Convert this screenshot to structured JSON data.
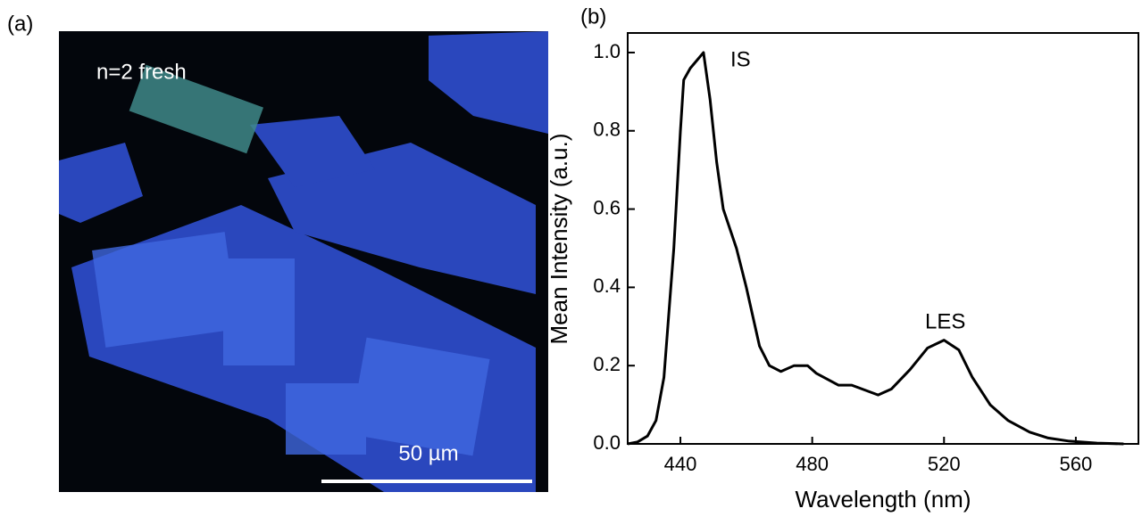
{
  "image_panel": {
    "panel_label": "(a)",
    "caption": "n=2 fresh",
    "scale_bar_label": "50 µm"
  },
  "chart_data": {
    "type": "line",
    "panel_label": "(b)",
    "x_label": "Wavelength (nm)",
    "y_label": "Mean Intensity (a.u.)",
    "annotations": [
      "IS",
      "LES"
    ],
    "x": [
      424,
      427,
      430,
      432.6,
      435,
      438,
      440,
      441,
      443,
      445,
      447,
      449,
      451,
      453,
      457,
      460,
      464,
      467,
      470.5,
      474.5,
      478.6,
      481.3,
      488,
      492,
      500,
      504,
      509.7,
      515,
      520,
      524.5,
      528.6,
      534,
      539.4,
      546,
      551.6,
      558,
      566.4,
      574.5
    ],
    "series": [
      {
        "name": "Mean Intensity",
        "color": "#000000",
        "values": [
          0.0,
          0.005,
          0.02,
          0.06,
          0.17,
          0.5,
          0.8,
          0.93,
          0.96,
          0.98,
          1.0,
          0.88,
          0.72,
          0.6,
          0.5,
          0.4,
          0.25,
          0.2,
          0.185,
          0.2,
          0.2,
          0.18,
          0.15,
          0.15,
          0.125,
          0.14,
          0.19,
          0.245,
          0.265,
          0.24,
          0.17,
          0.1,
          0.06,
          0.03,
          0.015,
          0.007,
          0.002,
          0.0
        ]
      }
    ],
    "xlim": [
      424,
      579
    ],
    "ylim": [
      0,
      1.05
    ],
    "xticks": [
      440,
      480,
      520,
      560
    ],
    "yticks": [
      {
        "value": 0,
        "label": "0.0"
      },
      0.2,
      0.4,
      0.6,
      0.8,
      {
        "value": 1,
        "label": "1.0"
      }
    ]
  }
}
